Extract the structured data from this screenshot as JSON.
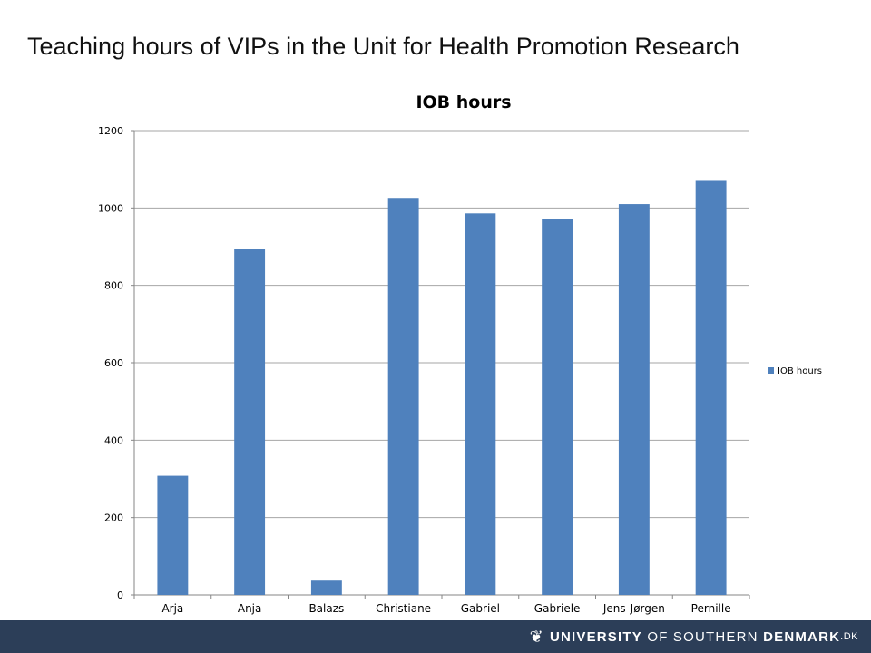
{
  "slide": {
    "title": "Teaching hours of VIPs in the Unit for Health Promotion Research"
  },
  "footer": {
    "logo_part1": "UNIVERSITY",
    "logo_part2": "OF SOUTHERN",
    "logo_part3": "DENMARK",
    "logo_part4": ".DK",
    "bar_color": "#2c3e58"
  },
  "chart_data": {
    "type": "bar",
    "title": "IOB hours",
    "categories": [
      "Arja",
      "Anja",
      "Balazs",
      "Christiane",
      "Gabriel",
      "Gabriele",
      "Jens-Jørgen",
      "Pernille"
    ],
    "series": [
      {
        "name": "IOB hours",
        "values": [
          308,
          893,
          37,
          1026,
          986,
          972,
          1010,
          1070
        ],
        "color": "#4f81bd"
      }
    ],
    "ylim": [
      0,
      1200
    ],
    "yticks": [
      0,
      200,
      400,
      600,
      800,
      1000,
      1200
    ],
    "xlabel": "",
    "ylabel": "",
    "grid": true,
    "legend_position": "right"
  }
}
